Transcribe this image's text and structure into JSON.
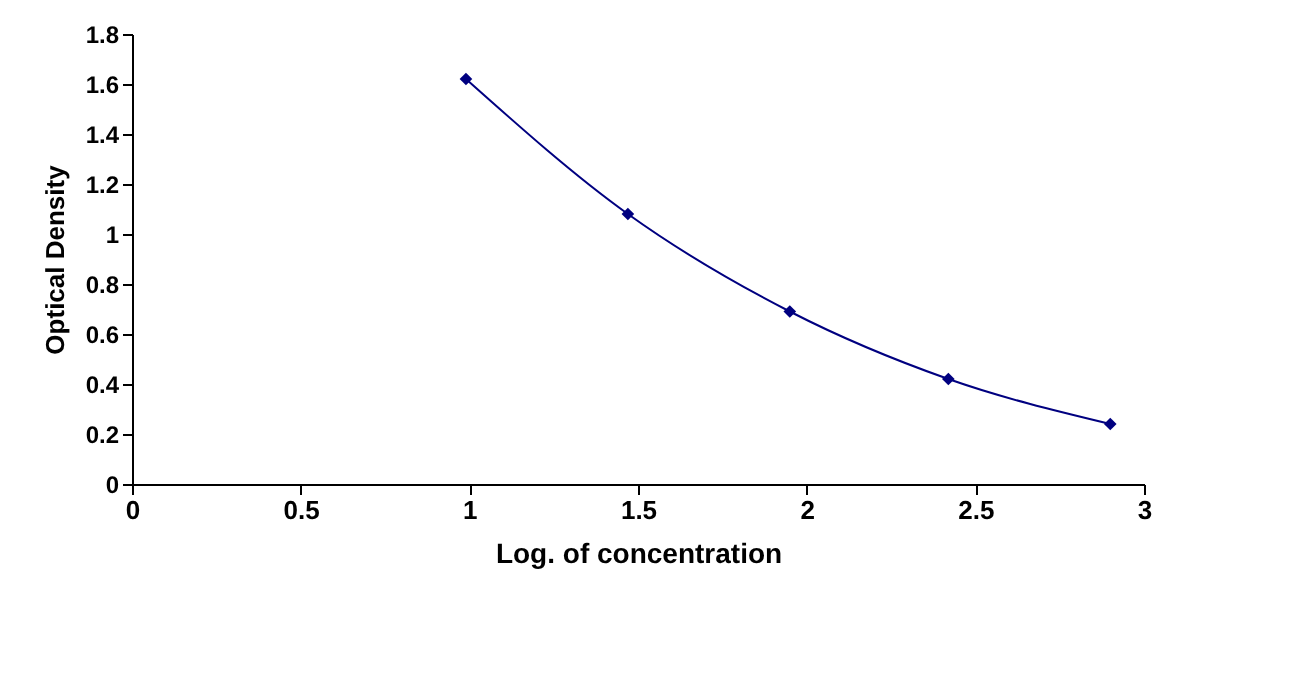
{
  "chart_data": {
    "type": "line",
    "xlabel": "Log. of concentration",
    "ylabel": "Optical Density",
    "x": [
      0.99,
      1.47,
      1.95,
      2.42,
      2.9
    ],
    "series": [
      {
        "color": "#000080",
        "values": [
          1.62,
          1.08,
          0.69,
          0.42,
          0.24
        ]
      }
    ],
    "xlim": [
      0,
      3
    ],
    "xticks": [
      0,
      0.5,
      1,
      1.5,
      2,
      2.5,
      3
    ],
    "ylim": [
      0,
      1.8
    ],
    "yticks": [
      0,
      0.2,
      0.4,
      0.6,
      0.8,
      1,
      1.2,
      1.4,
      1.6,
      1.8
    ],
    "marker": "diamond",
    "line_style": "solid",
    "grid": false
  }
}
